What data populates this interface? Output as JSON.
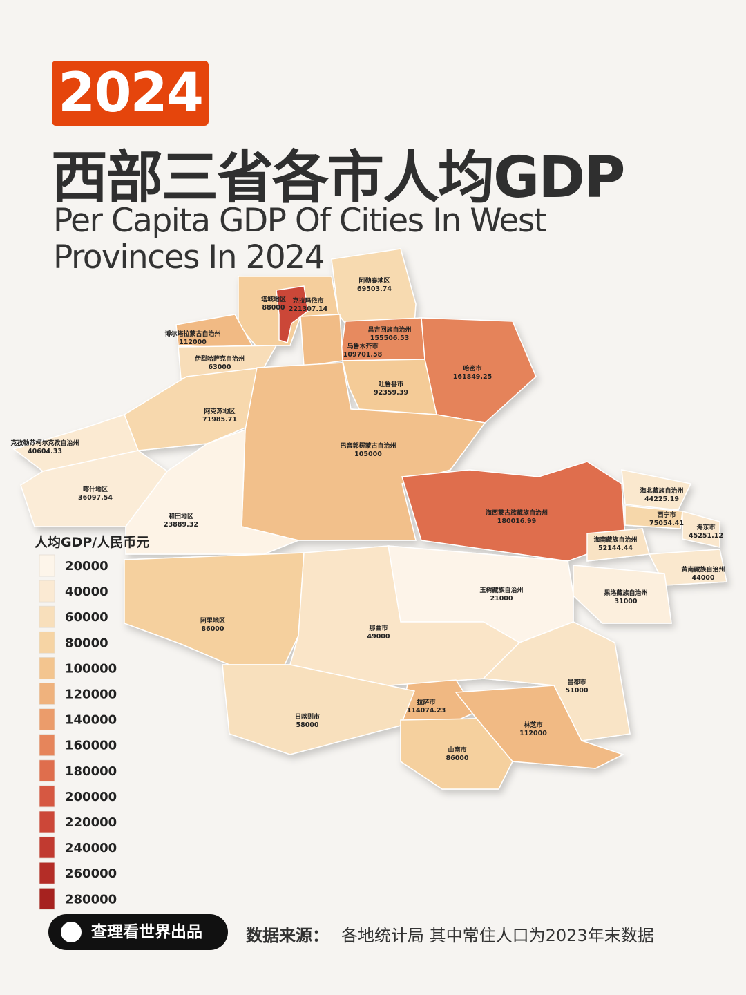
{
  "header": {
    "badge": "2024",
    "title": "西部三省各市人均GDP",
    "subtitle": [
      "Per Capita GDP Of Cities In West",
      "Provinces In 2024"
    ]
  },
  "legend": {
    "title": "人均GDP/人民币元",
    "ticks": [
      20000,
      40000,
      60000,
      80000,
      100000,
      120000,
      140000,
      160000,
      180000,
      200000,
      220000,
      240000,
      260000,
      280000
    ],
    "colors": [
      "#fdf5ea",
      "#fbead3",
      "#f8dfbb",
      "#f6d4a4",
      "#f3c58f",
      "#efb27d",
      "#eb9c6b",
      "#e6855b",
      "#df6e4d",
      "#d65842",
      "#cc4738",
      "#c13a30",
      "#b42d27",
      "#a6221f"
    ]
  },
  "regions": [
    {
      "name": "阿勒泰地区",
      "value": 69503.74
    },
    {
      "name": "塔城地区",
      "value": 88000
    },
    {
      "name": "克拉玛依市",
      "value": 221307.14
    },
    {
      "name": "博尔塔拉蒙古自治州",
      "value": 112000
    },
    {
      "name": "昌吉回族自治州",
      "value": 155506.53
    },
    {
      "name": "乌鲁木齐市",
      "value": 109701.58
    },
    {
      "name": "伊犁哈萨克自治州",
      "value": 63000
    },
    {
      "name": "哈密市",
      "value": 161849.25
    },
    {
      "name": "吐鲁番市",
      "value": 92359.39
    },
    {
      "name": "阿克苏地区",
      "value": 71985.71
    },
    {
      "name": "巴音郭楞蒙古自治州",
      "value": 105000
    },
    {
      "name": "克孜勒苏柯尔克孜自治州",
      "value": 40604.33
    },
    {
      "name": "喀什地区",
      "value": 36097.54
    },
    {
      "name": "和田地区",
      "value": 23889.32
    },
    {
      "name": "海西蒙古族藏族自治州",
      "value": 180016.99
    },
    {
      "name": "海北藏族自治州",
      "value": 44225.19
    },
    {
      "name": "西宁市",
      "value": 75054.41
    },
    {
      "name": "海东市",
      "value": 45251.12
    },
    {
      "name": "海南藏族自治州",
      "value": 52144.44
    },
    {
      "name": "黄南藏族自治州",
      "value": 44000
    },
    {
      "name": "玉树藏族自治州",
      "value": 21000
    },
    {
      "name": "果洛藏族自治州",
      "value": 31000
    },
    {
      "name": "阿里地区",
      "value": 86000
    },
    {
      "name": "那曲市",
      "value": 49000
    },
    {
      "name": "昌都市",
      "value": 51000
    },
    {
      "name": "拉萨市",
      "value": 114074.23
    },
    {
      "name": "日喀则市",
      "value": 58000
    },
    {
      "name": "林芝市",
      "value": 112000
    },
    {
      "name": "山南市",
      "value": 86000
    }
  ],
  "footer": {
    "brand": "查理看世界出品",
    "source_label": "数据来源：",
    "source": "各地统计局  其中常住人口为2023年末数据"
  }
}
